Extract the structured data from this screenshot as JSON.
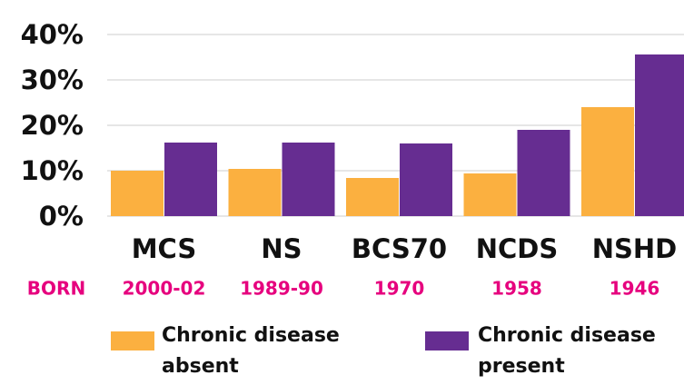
{
  "chart_data": {
    "type": "bar",
    "categories": [
      "MCS",
      "NS",
      "BCS70",
      "NCDS",
      "NSHD"
    ],
    "born_label": "BORN",
    "years": [
      "2000-02",
      "1989-90",
      "1970",
      "1958",
      "1946"
    ],
    "series": [
      {
        "name": "Chronic disease absent",
        "color": "#fbb040",
        "values": [
          10,
          10.4,
          8.4,
          9.4,
          24
        ]
      },
      {
        "name": "Chronic disease present",
        "color": "#662d91",
        "values": [
          16.2,
          16.2,
          16,
          19,
          35.6
        ]
      }
    ],
    "ylim": [
      0,
      40
    ],
    "yticks": [
      {
        "value": 0,
        "label": "0%"
      },
      {
        "value": 10,
        "label": "10%"
      },
      {
        "value": 20,
        "label": "20%"
      },
      {
        "value": 30,
        "label": "30%"
      },
      {
        "value": 40,
        "label": "40%"
      }
    ],
    "grid": true
  }
}
